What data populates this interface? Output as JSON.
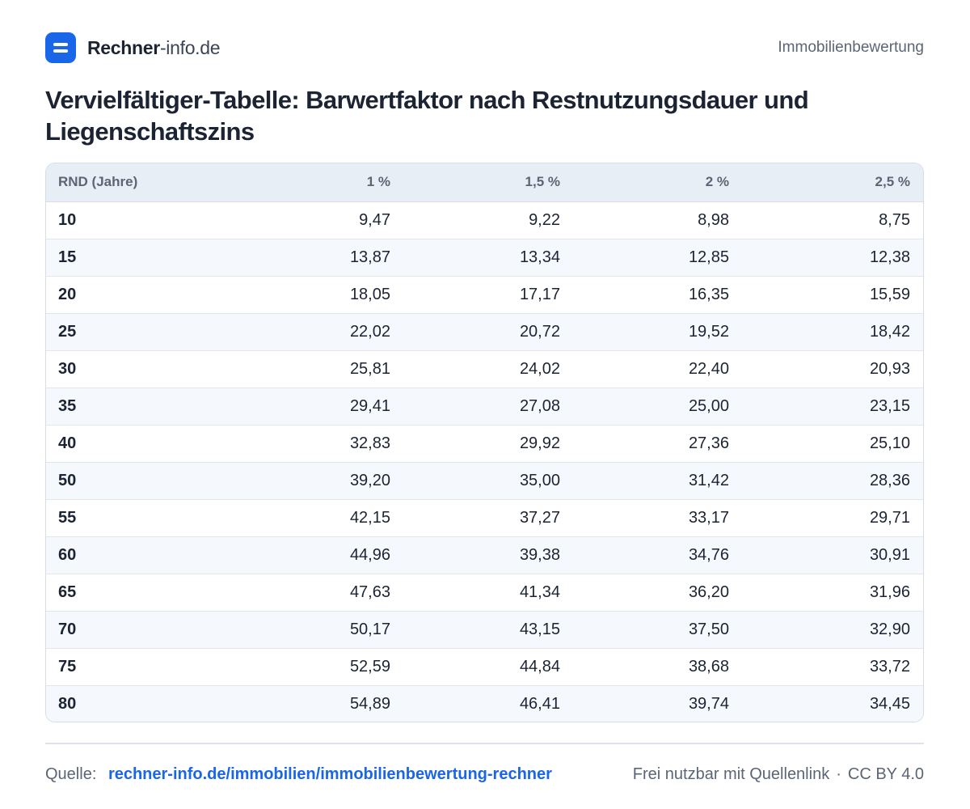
{
  "header": {
    "brand_strong": "Rechner",
    "brand_light": "-info.de",
    "category": "Immobilienbewertung"
  },
  "title": "Vervielfältiger-Tabelle: Barwertfaktor nach Restnutzungsdauer und Liegenschaftszins",
  "table": {
    "columns": [
      "RND (Jahre)",
      "1 %",
      "1,5 %",
      "2 %",
      "2,5 %"
    ],
    "rows": [
      [
        "10",
        "9,47",
        "9,22",
        "8,98",
        "8,75"
      ],
      [
        "15",
        "13,87",
        "13,34",
        "12,85",
        "12,38"
      ],
      [
        "20",
        "18,05",
        "17,17",
        "16,35",
        "15,59"
      ],
      [
        "25",
        "22,02",
        "20,72",
        "19,52",
        "18,42"
      ],
      [
        "30",
        "25,81",
        "24,02",
        "22,40",
        "20,93"
      ],
      [
        "35",
        "29,41",
        "27,08",
        "25,00",
        "23,15"
      ],
      [
        "40",
        "32,83",
        "29,92",
        "27,36",
        "25,10"
      ],
      [
        "50",
        "39,20",
        "35,00",
        "31,42",
        "28,36"
      ],
      [
        "55",
        "42,15",
        "37,27",
        "33,17",
        "29,71"
      ],
      [
        "60",
        "44,96",
        "39,38",
        "34,76",
        "30,91"
      ],
      [
        "65",
        "47,63",
        "41,34",
        "36,20",
        "31,96"
      ],
      [
        "70",
        "50,17",
        "43,15",
        "37,50",
        "32,90"
      ],
      [
        "75",
        "52,59",
        "44,84",
        "38,68",
        "33,72"
      ],
      [
        "80",
        "54,89",
        "46,41",
        "39,74",
        "34,45"
      ]
    ]
  },
  "footer": {
    "source_label": "Quelle:",
    "source_link": "rechner-info.de/immobilien/immobilienbewertung-rechner",
    "license_text": "Frei nutzbar mit Quellenlink",
    "separator": "·",
    "license_name": "CC BY 4.0"
  },
  "colors": {
    "accent": "#1a66e8",
    "text": "#1c2433",
    "muted": "#5b6575",
    "header_bg": "#e8eef6",
    "stripe_bg": "#f5f8fc"
  }
}
